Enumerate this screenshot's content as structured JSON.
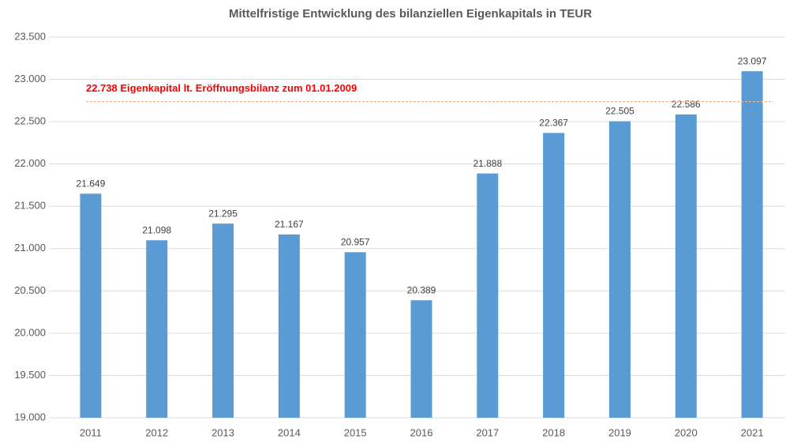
{
  "chart_data": {
    "type": "bar",
    "title": "Mittelfristige Entwicklung des bilanziellen Eigenkapitals in TEUR",
    "categories": [
      "2011",
      "2012",
      "2013",
      "2014",
      "2015",
      "2016",
      "2017",
      "2018",
      "2019",
      "2020",
      "2021"
    ],
    "values": [
      21649,
      21098,
      21295,
      21167,
      20957,
      20389,
      21888,
      22367,
      22505,
      22586,
      23097
    ],
    "value_labels": [
      "21.649",
      "21.098",
      "21.295",
      "21.167",
      "20.957",
      "20.389",
      "21.888",
      "22.367",
      "22.505",
      "22.586",
      "23.097"
    ],
    "color": "#5b9bd5",
    "ylim": [
      19000,
      23500
    ],
    "yticks": [
      {
        "value": 19000,
        "label": "19.000"
      },
      {
        "value": 19500,
        "label": "19.500"
      },
      {
        "value": 20000,
        "label": "20.000"
      },
      {
        "value": 20500,
        "label": "20.500"
      },
      {
        "value": 21000,
        "label": "21.000"
      },
      {
        "value": 21500,
        "label": "21.500"
      },
      {
        "value": 22000,
        "label": "22.000"
      },
      {
        "value": 22500,
        "label": "22.500"
      },
      {
        "value": 23000,
        "label": "23.000"
      },
      {
        "value": 23500,
        "label": "23.500"
      }
    ],
    "grid": true,
    "reference_line": {
      "value": 22738,
      "label": "22.738 Eigenkapital lt. Eröffnungsbilanz zum 01.01.2009",
      "color": "#f4b183",
      "label_color": "#ff0000"
    }
  }
}
